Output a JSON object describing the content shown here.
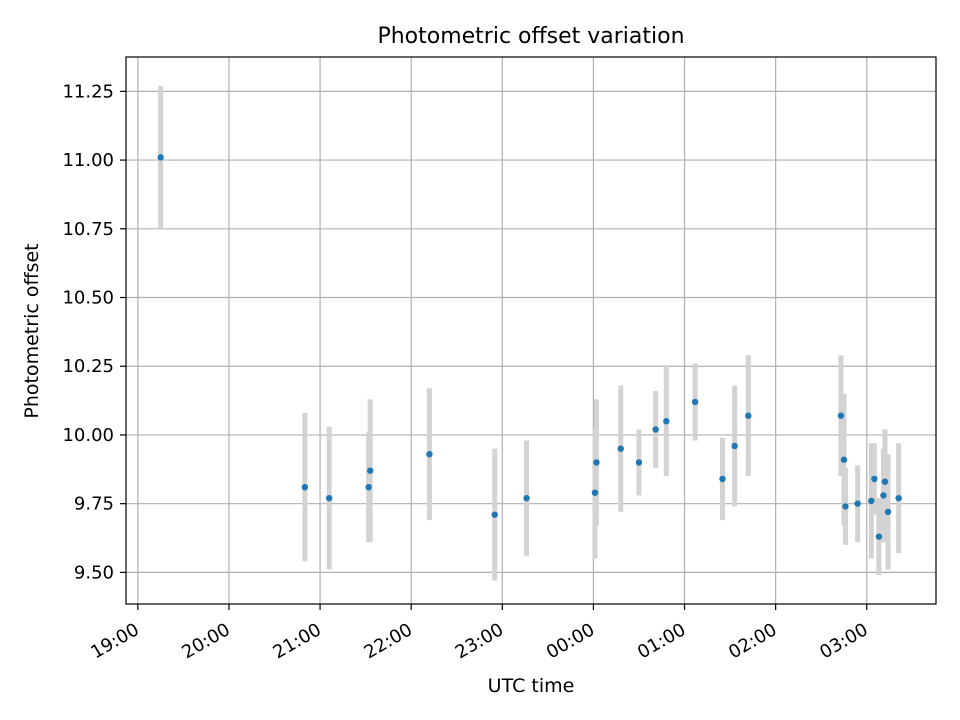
{
  "chart_data": {
    "type": "scatter",
    "title": "Photometric offset variation",
    "xlabel": "UTC time",
    "ylabel": "Photometric offset",
    "x_ticks": [
      "19:00",
      "20:00",
      "21:00",
      "22:00",
      "23:00",
      "00:00",
      "01:00",
      "02:00",
      "03:00"
    ],
    "y_ticks": [
      "9.50",
      "9.75",
      "10.00",
      "10.25",
      "10.50",
      "10.75",
      "11.00",
      "11.25"
    ],
    "xlim_hours": [
      18.87,
      27.76
    ],
    "ylim": [
      9.385,
      11.375
    ],
    "grid": true,
    "colors": {
      "point": "#1f77b4",
      "errorbar": "#d3d3d3",
      "grid": "#b0b0b0"
    },
    "series": [
      {
        "points": [
          {
            "x": "19:15",
            "y": 11.01,
            "err": 0.26
          },
          {
            "x": "20:50",
            "y": 9.81,
            "err": 0.27
          },
          {
            "x": "21:06",
            "y": 9.77,
            "err": 0.26
          },
          {
            "x": "21:32",
            "y": 9.81,
            "err": 0.2
          },
          {
            "x": "21:33",
            "y": 9.87,
            "err": 0.26
          },
          {
            "x": "22:12",
            "y": 9.93,
            "err": 0.24
          },
          {
            "x": "22:55",
            "y": 9.71,
            "err": 0.24
          },
          {
            "x": "23:16",
            "y": 9.77,
            "err": 0.21
          },
          {
            "x": "00:01",
            "y": 9.79,
            "err": 0.24
          },
          {
            "x": "00:02",
            "y": 9.9,
            "err": 0.23
          },
          {
            "x": "00:18",
            "y": 9.95,
            "err": 0.23
          },
          {
            "x": "00:30",
            "y": 9.9,
            "err": 0.12
          },
          {
            "x": "00:41",
            "y": 10.02,
            "err": 0.14
          },
          {
            "x": "00:48",
            "y": 10.05,
            "err": 0.2
          },
          {
            "x": "01:07",
            "y": 10.12,
            "err": 0.14
          },
          {
            "x": "01:25",
            "y": 9.84,
            "err": 0.15
          },
          {
            "x": "01:33",
            "y": 9.96,
            "err": 0.22
          },
          {
            "x": "01:42",
            "y": 10.07,
            "err": 0.22
          },
          {
            "x": "02:43",
            "y": 10.07,
            "err": 0.22
          },
          {
            "x": "02:45",
            "y": 9.91,
            "err": 0.24
          },
          {
            "x": "02:46",
            "y": 9.74,
            "err": 0.14
          },
          {
            "x": "02:54",
            "y": 9.75,
            "err": 0.14
          },
          {
            "x": "03:03",
            "y": 9.76,
            "err": 0.21
          },
          {
            "x": "03:05",
            "y": 9.84,
            "err": 0.13
          },
          {
            "x": "03:08",
            "y": 9.63,
            "err": 0.14
          },
          {
            "x": "03:11",
            "y": 9.78,
            "err": 0.17
          },
          {
            "x": "03:12",
            "y": 9.83,
            "err": 0.19
          },
          {
            "x": "03:14",
            "y": 9.72,
            "err": 0.21
          },
          {
            "x": "03:21",
            "y": 9.77,
            "err": 0.2
          }
        ]
      }
    ]
  }
}
